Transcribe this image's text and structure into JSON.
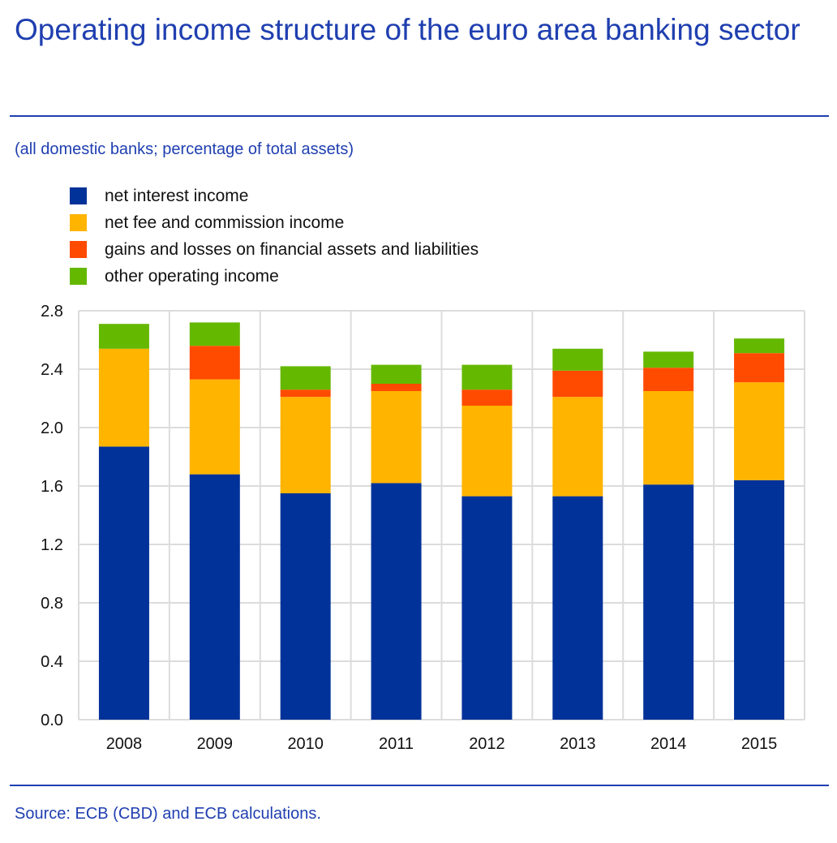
{
  "chart_data": {
    "type": "bar",
    "stacked": true,
    "title": "Operating income structure of the euro area banking sector",
    "subtitle": "(all domestic banks; percentage of total assets)",
    "source": "Source: ECB (CBD) and ECB calculations.",
    "categories": [
      "2008",
      "2009",
      "2010",
      "2011",
      "2012",
      "2013",
      "2014",
      "2015"
    ],
    "series": [
      {
        "name": "net interest income",
        "color": "#003299",
        "values": [
          1.87,
          1.68,
          1.55,
          1.62,
          1.53,
          1.53,
          1.61,
          1.64
        ]
      },
      {
        "name": "net fee and commission income",
        "color": "#ffb400",
        "values": [
          0.67,
          0.65,
          0.66,
          0.63,
          0.62,
          0.68,
          0.64,
          0.67
        ]
      },
      {
        "name": "gains and losses on financial assets and liabilities",
        "color": "#ff4b00",
        "values": [
          0.0,
          0.23,
          0.05,
          0.05,
          0.11,
          0.18,
          0.16,
          0.2
        ]
      },
      {
        "name": "other operating income",
        "color": "#65b800",
        "values": [
          0.17,
          0.16,
          0.16,
          0.13,
          0.17,
          0.15,
          0.11,
          0.1
        ]
      }
    ],
    "ylim": [
      0,
      2.8
    ],
    "yticks": [
      "0.0",
      "0.4",
      "0.8",
      "1.2",
      "1.6",
      "2.0",
      "2.4",
      "2.8"
    ],
    "grid": true,
    "legend_position": "top-left",
    "xlabel": "",
    "ylabel": ""
  }
}
